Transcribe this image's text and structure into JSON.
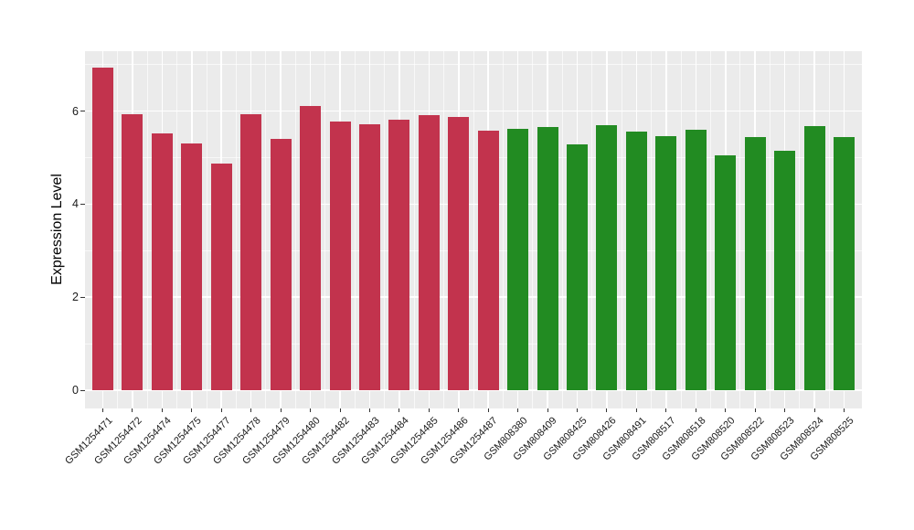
{
  "chart_data": {
    "type": "bar",
    "title": "",
    "xlabel": "",
    "ylabel": "Expression Level",
    "ytick_labels": [
      "0",
      "2",
      "4",
      "6"
    ],
    "yticks": [
      0,
      2,
      4,
      6
    ],
    "yticks_minor": [
      1,
      3,
      5,
      7
    ],
    "ylim": [
      0,
      7.3
    ],
    "grid": "white major and minor gridlines on gray panel",
    "legend_position": "none",
    "panel_bg": "#EBEBEB",
    "group_colors": {
      "red_group": "#C2334D",
      "green_group": "#228B22"
    },
    "bars": [
      {
        "label": "GSM1254471",
        "value": 6.94,
        "color": "#C2334D"
      },
      {
        "label": "GSM1254472",
        "value": 5.93,
        "color": "#C2334D"
      },
      {
        "label": "GSM1254474",
        "value": 5.52,
        "color": "#C2334D"
      },
      {
        "label": "GSM1254475",
        "value": 5.31,
        "color": "#C2334D"
      },
      {
        "label": "GSM1254477",
        "value": 4.87,
        "color": "#C2334D"
      },
      {
        "label": "GSM1254478",
        "value": 5.93,
        "color": "#C2334D"
      },
      {
        "label": "GSM1254479",
        "value": 5.41,
        "color": "#C2334D"
      },
      {
        "label": "GSM1254480",
        "value": 6.11,
        "color": "#C2334D"
      },
      {
        "label": "GSM1254482",
        "value": 5.77,
        "color": "#C2334D"
      },
      {
        "label": "GSM1254483",
        "value": 5.72,
        "color": "#C2334D"
      },
      {
        "label": "GSM1254484",
        "value": 5.82,
        "color": "#C2334D"
      },
      {
        "label": "GSM1254485",
        "value": 5.91,
        "color": "#C2334D"
      },
      {
        "label": "GSM1254486",
        "value": 5.87,
        "color": "#C2334D"
      },
      {
        "label": "GSM1254487",
        "value": 5.57,
        "color": "#C2334D"
      },
      {
        "label": "GSM808380",
        "value": 5.62,
        "color": "#228B22"
      },
      {
        "label": "GSM808409",
        "value": 5.66,
        "color": "#228B22"
      },
      {
        "label": "GSM808425",
        "value": 5.29,
        "color": "#228B22"
      },
      {
        "label": "GSM808426",
        "value": 5.69,
        "color": "#228B22"
      },
      {
        "label": "GSM808491",
        "value": 5.56,
        "color": "#228B22"
      },
      {
        "label": "GSM808517",
        "value": 5.46,
        "color": "#228B22"
      },
      {
        "label": "GSM808518",
        "value": 5.59,
        "color": "#228B22"
      },
      {
        "label": "GSM808520",
        "value": 5.05,
        "color": "#228B22"
      },
      {
        "label": "GSM808522",
        "value": 5.45,
        "color": "#228B22"
      },
      {
        "label": "GSM808523",
        "value": 5.15,
        "color": "#228B22"
      },
      {
        "label": "GSM808524",
        "value": 5.68,
        "color": "#228B22"
      },
      {
        "label": "GSM808525",
        "value": 5.45,
        "color": "#228B22"
      }
    ]
  }
}
